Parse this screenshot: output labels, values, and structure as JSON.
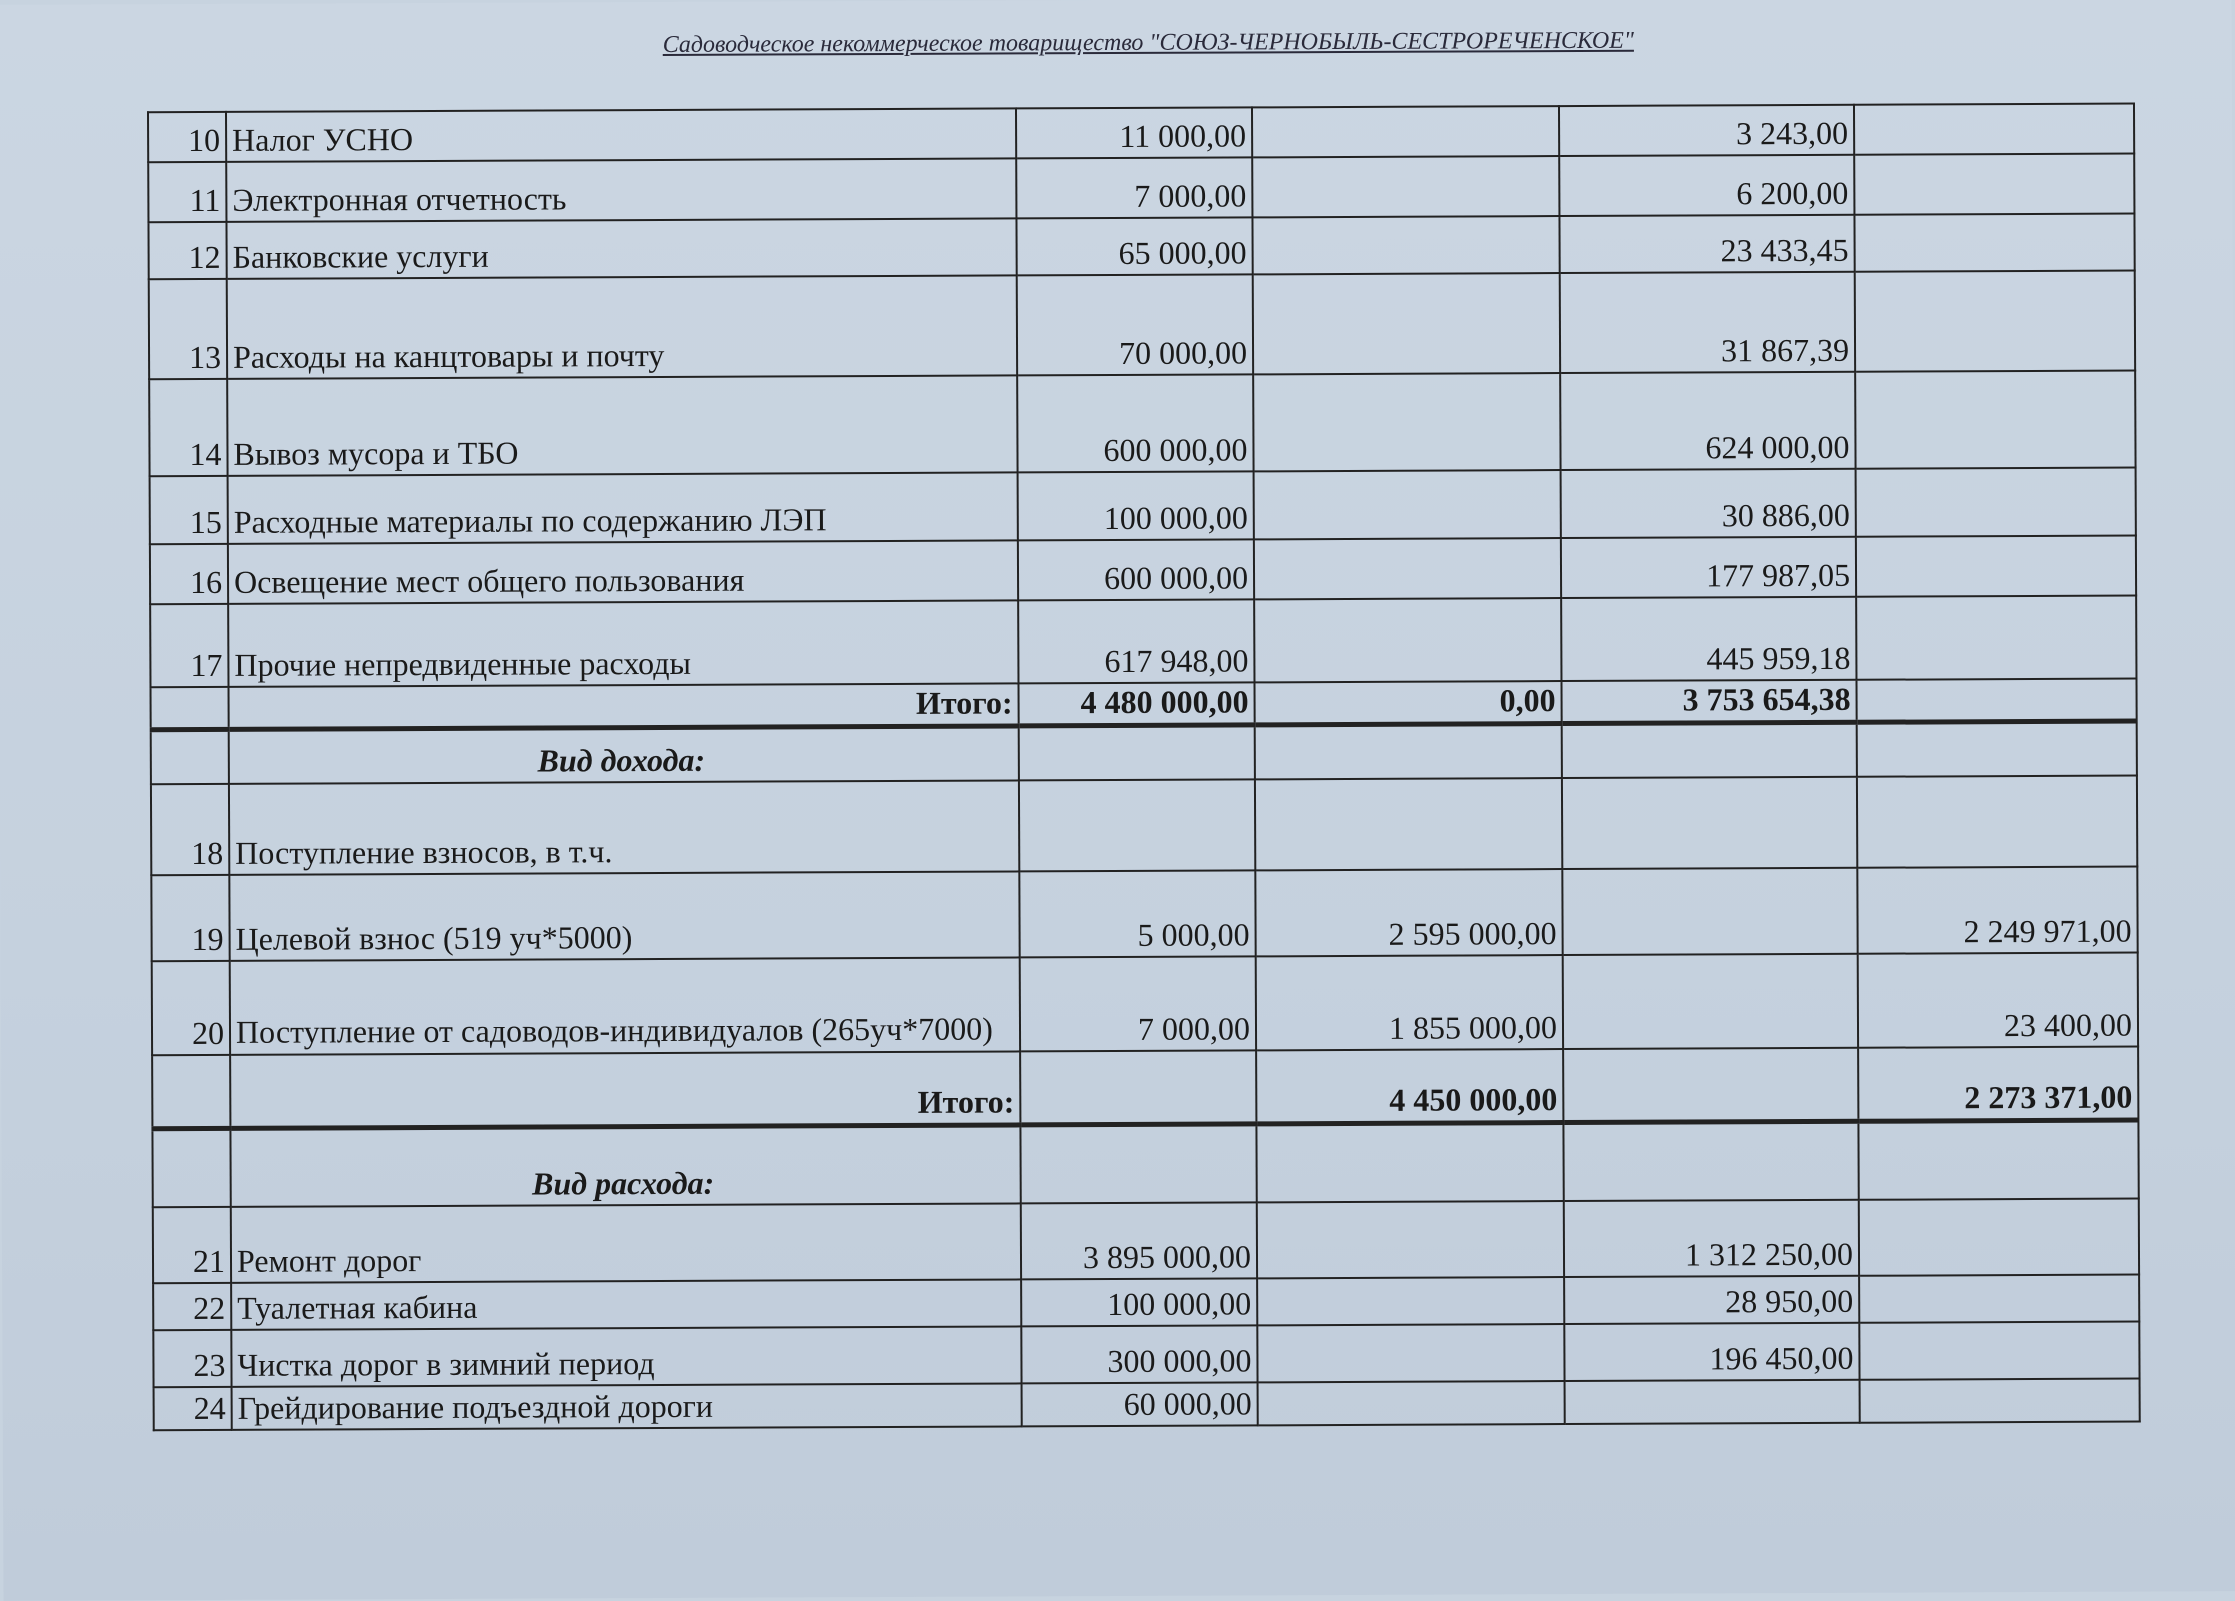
{
  "header": "Садоводческое некоммерческое товарищество \"СОЮЗ-ЧЕРНОБЫЛЬ-СЕСТРОРЕЧЕНСКОЕ\"",
  "rows": [
    {
      "num": "10",
      "name": "Налог УСНО",
      "c1": "11 000,00",
      "c2": "",
      "c3": "3 243,00",
      "c4": ""
    },
    {
      "num": "11",
      "name": "Электронная отчетность",
      "c1": "7 000,00",
      "c2": "",
      "c3": "6 200,00",
      "c4": ""
    },
    {
      "num": "12",
      "name": "Банковские услуги",
      "c1": "65 000,00",
      "c2": "",
      "c3": "23 433,45",
      "c4": ""
    },
    {
      "num": "13",
      "name": "Расходы на канцтовары и почту",
      "c1": "70 000,00",
      "c2": "",
      "c3": "31 867,39",
      "c4": ""
    },
    {
      "num": "14",
      "name": "Вывоз мусора и ТБО",
      "c1": "600 000,00",
      "c2": "",
      "c3": "624 000,00",
      "c4": ""
    },
    {
      "num": "15",
      "name": "Расходные материалы по содержанию ЛЭП",
      "c1": "100 000,00",
      "c2": "",
      "c3": "30 886,00",
      "c4": ""
    },
    {
      "num": "16",
      "name": "Освещение мест общего пользования",
      "c1": "600 000,00",
      "c2": "",
      "c3": "177 987,05",
      "c4": ""
    },
    {
      "num": "17",
      "name": "Прочие непредвиденные расходы",
      "c1": "617 948,00",
      "c2": "",
      "c3": "445 959,18",
      "c4": ""
    },
    {
      "num": "",
      "name": "Итого:",
      "c1": "4 480 000,00",
      "c2": "0,00",
      "c3": "3 753 654,38",
      "c4": ""
    },
    {
      "num": "",
      "name": "Вид дохода:",
      "c1": "",
      "c2": "",
      "c3": "",
      "c4": ""
    },
    {
      "num": "18",
      "name": "Поступление взносов, в т.ч.",
      "c1": "",
      "c2": "",
      "c3": "",
      "c4": ""
    },
    {
      "num": "19",
      "name": "Целевой взнос (519 уч*5000)",
      "c1": "5 000,00",
      "c2": "2 595 000,00",
      "c3": "",
      "c4": "2 249 971,00"
    },
    {
      "num": "20",
      "name": "Поступление от садоводов-индивидуалов (265уч*7000)",
      "c1": "7 000,00",
      "c2": "1 855 000,00",
      "c3": "",
      "c4": "23 400,00"
    },
    {
      "num": "",
      "name": "Итого:",
      "c1": "",
      "c2": "4 450 000,00",
      "c3": "",
      "c4": "2 273 371,00"
    },
    {
      "num": "",
      "name": "Вид расхода:",
      "c1": "",
      "c2": "",
      "c3": "",
      "c4": ""
    },
    {
      "num": "21",
      "name": "Ремонт дорог",
      "c1": "3 895 000,00",
      "c2": "",
      "c3": "1 312 250,00",
      "c4": ""
    },
    {
      "num": "22",
      "name": "Туалетная кабина",
      "c1": "100 000,00",
      "c2": "",
      "c3": "28 950,00",
      "c4": ""
    },
    {
      "num": "23",
      "name": "Чистка дорог в зимний период",
      "c1": "300 000,00",
      "c2": "",
      "c3": "196 450,00",
      "c4": ""
    },
    {
      "num": "24",
      "name": "Грейдирование подъездной дороги",
      "c1": "60 000,00",
      "c2": "",
      "c3": "",
      "c4": ""
    }
  ]
}
